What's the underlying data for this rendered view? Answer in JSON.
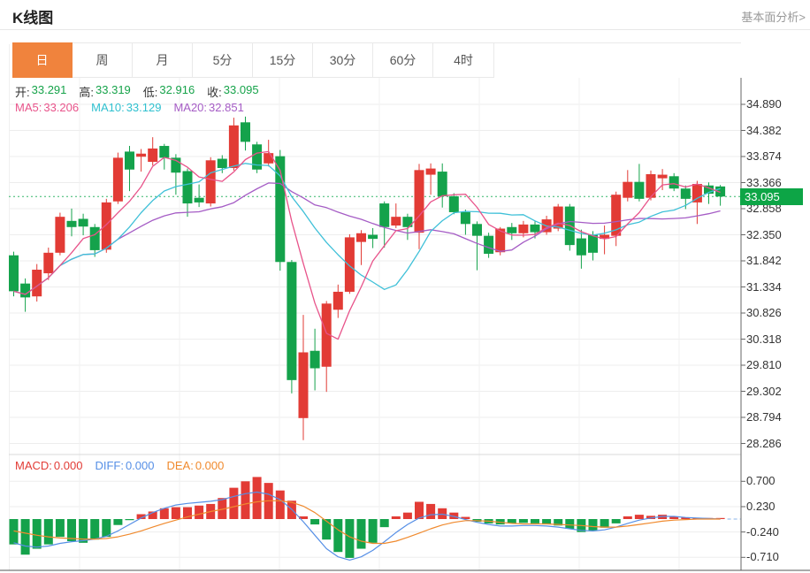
{
  "header": {
    "title": "K线图",
    "more_link": "基本面分析>"
  },
  "toolbar": {
    "tabs": [
      "日",
      "周",
      "月",
      "5分",
      "15分",
      "30分",
      "60分",
      "4时"
    ],
    "selected_index": 0
  },
  "ohlc_legend": {
    "items": [
      {
        "label": "开:",
        "value": "33.291"
      },
      {
        "label": "高:",
        "value": "33.319"
      },
      {
        "label": "低:",
        "value": "32.916"
      },
      {
        "label": "收:",
        "value": "33.095"
      }
    ],
    "value_color": "#16a34a"
  },
  "ma_legend": {
    "items": [
      {
        "label": "MA5:",
        "value": "33.206",
        "color": "#e8538a"
      },
      {
        "label": "MA10:",
        "value": "33.129",
        "color": "#2fc0cf"
      },
      {
        "label": "MA20:",
        "value": "32.851",
        "color": "#a55cc5"
      }
    ]
  },
  "macd_legend": {
    "items": [
      {
        "label": "MACD:",
        "value": "0.000",
        "color": "#e23b35"
      },
      {
        "label": "DIFF:",
        "value": "0.000",
        "color": "#568fe6"
      },
      {
        "label": "DEA:",
        "value": "0.000",
        "color": "#f08a2e"
      }
    ]
  },
  "price_badge": {
    "value": "33.095"
  },
  "colors": {
    "up": "#e23b35",
    "down": "#14a24b",
    "ma5": "#e8538a",
    "ma10": "#3fc0d8",
    "ma20": "#a55cc5",
    "diff": "#568fe6",
    "dea": "#f08a2e",
    "selected_tab": "#f0833d",
    "dotted_price_line": "#35b56a",
    "badge_bg": "#0da546",
    "grid": "#ededed",
    "axis": "#666666"
  },
  "chart_data": {
    "type": "candlestick+macd",
    "title": "K线图 (daily candlestick with MA5/MA10/MA20 and MACD)",
    "price_axis_ticks": [
      "34.890",
      "34.382",
      "33.874",
      "33.366",
      "32.858",
      "32.350",
      "31.842",
      "31.334",
      "30.826",
      "30.318",
      "29.810",
      "29.302",
      "28.794",
      "28.286"
    ],
    "price_range": {
      "min": 28.286,
      "max": 34.89
    },
    "current_price": 33.095,
    "today": {
      "open": 33.291,
      "high": 33.319,
      "low": 32.916,
      "close": 33.095
    },
    "ma_values": {
      "ma5": 33.206,
      "ma10": 33.129,
      "ma20": 32.851
    },
    "ma_periods": [
      5,
      10,
      20
    ],
    "candles_ohlc": [
      [
        31.95,
        32.02,
        31.15,
        31.25
      ],
      [
        31.4,
        31.5,
        30.85,
        31.13
      ],
      [
        31.15,
        31.78,
        31.05,
        31.67
      ],
      [
        31.6,
        32.1,
        31.47,
        32.0
      ],
      [
        32.0,
        32.78,
        31.95,
        32.7
      ],
      [
        32.62,
        32.86,
        32.32,
        32.5
      ],
      [
        32.66,
        32.76,
        32.34,
        32.51
      ],
      [
        32.5,
        32.56,
        31.92,
        32.05
      ],
      [
        32.06,
        33.05,
        32.0,
        32.98
      ],
      [
        33.0,
        33.95,
        32.95,
        33.85
      ],
      [
        33.97,
        34.08,
        33.2,
        33.62
      ],
      [
        33.87,
        34.02,
        33.58,
        33.93
      ],
      [
        33.77,
        34.25,
        33.7,
        34.03
      ],
      [
        34.08,
        34.12,
        33.62,
        33.85
      ],
      [
        33.85,
        33.92,
        33.13,
        33.56
      ],
      [
        33.59,
        33.64,
        32.7,
        32.96
      ],
      [
        33.07,
        33.33,
        32.89,
        32.98
      ],
      [
        32.96,
        33.86,
        32.9,
        33.8
      ],
      [
        33.83,
        33.9,
        33.55,
        33.65
      ],
      [
        33.65,
        34.63,
        33.6,
        34.48
      ],
      [
        34.54,
        34.65,
        33.99,
        34.16
      ],
      [
        34.11,
        34.16,
        33.55,
        33.62
      ],
      [
        33.74,
        34.2,
        33.68,
        33.94
      ],
      [
        33.88,
        34.0,
        31.65,
        31.82
      ],
      [
        31.82,
        31.86,
        29.26,
        29.52
      ],
      [
        28.78,
        30.79,
        28.35,
        30.06
      ],
      [
        30.09,
        30.52,
        29.32,
        29.75
      ],
      [
        29.78,
        31.06,
        29.29,
        31.01
      ],
      [
        30.89,
        31.38,
        30.73,
        31.24
      ],
      [
        31.24,
        32.36,
        31.2,
        32.3
      ],
      [
        32.21,
        32.44,
        31.76,
        32.38
      ],
      [
        32.35,
        32.48,
        32.09,
        32.27
      ],
      [
        32.96,
        33.0,
        32.1,
        32.5
      ],
      [
        32.53,
        32.96,
        32.48,
        32.7
      ],
      [
        32.7,
        32.76,
        32.25,
        32.5
      ],
      [
        32.39,
        33.73,
        32.07,
        33.61
      ],
      [
        33.52,
        33.74,
        33.13,
        33.64
      ],
      [
        33.58,
        33.74,
        32.88,
        33.1
      ],
      [
        33.1,
        33.16,
        32.75,
        32.79
      ],
      [
        32.79,
        32.84,
        32.35,
        32.56
      ],
      [
        32.56,
        32.61,
        31.66,
        32.33
      ],
      [
        32.33,
        32.39,
        31.9,
        31.98
      ],
      [
        32.01,
        32.5,
        31.95,
        32.47
      ],
      [
        32.5,
        32.58,
        32.25,
        32.38
      ],
      [
        32.38,
        32.62,
        32.3,
        32.55
      ],
      [
        32.55,
        32.61,
        32.28,
        32.4
      ],
      [
        32.4,
        32.72,
        32.35,
        32.65
      ],
      [
        32.47,
        32.95,
        32.42,
        32.9
      ],
      [
        32.9,
        32.95,
        32.04,
        32.15
      ],
      [
        32.28,
        32.45,
        31.69,
        31.95
      ],
      [
        32.35,
        32.42,
        31.85,
        32.0
      ],
      [
        32.27,
        32.53,
        31.97,
        32.35
      ],
      [
        32.33,
        33.19,
        32.13,
        33.13
      ],
      [
        33.07,
        33.61,
        33.0,
        33.38
      ],
      [
        33.38,
        33.73,
        33.0,
        33.05
      ],
      [
        33.07,
        33.6,
        33.02,
        33.53
      ],
      [
        33.45,
        33.63,
        33.22,
        33.52
      ],
      [
        33.49,
        33.55,
        33.2,
        33.25
      ],
      [
        33.25,
        33.31,
        32.85,
        33.05
      ],
      [
        32.98,
        33.4,
        32.56,
        33.34
      ],
      [
        33.31,
        33.37,
        32.95,
        33.15
      ],
      [
        33.291,
        33.319,
        32.916,
        33.095
      ]
    ],
    "macd_axis_ticks": [
      "0.700",
      "0.230",
      "-0.240",
      "-0.710"
    ],
    "macd_range": {
      "min": -0.71,
      "max": 0.7
    },
    "macd_values": {
      "macd": 0.0,
      "diff": 0.0,
      "dea": 0.0
    },
    "macd_bars": [
      -0.47,
      -0.66,
      -0.55,
      -0.47,
      -0.33,
      -0.41,
      -0.44,
      -0.38,
      -0.33,
      -0.11,
      -0.02,
      0.09,
      0.14,
      0.2,
      0.22,
      0.22,
      0.25,
      0.28,
      0.39,
      0.58,
      0.7,
      0.78,
      0.67,
      0.53,
      0.34,
      0.05,
      -0.1,
      -0.38,
      -0.61,
      -0.72,
      -0.55,
      -0.44,
      -0.15,
      0.05,
      0.12,
      0.32,
      0.28,
      0.2,
      0.12,
      0.04,
      -0.05,
      -0.08,
      -0.1,
      -0.08,
      -0.07,
      -0.08,
      -0.1,
      -0.12,
      -0.18,
      -0.24,
      -0.22,
      -0.16,
      -0.08,
      0.05,
      0.08,
      0.06,
      0.08,
      0.05,
      0.03,
      0.02,
      0.01,
      0.0
    ],
    "diff_line": [
      -0.44,
      -0.5,
      -0.52,
      -0.5,
      -0.45,
      -0.42,
      -0.4,
      -0.37,
      -0.32,
      -0.22,
      -0.1,
      0.02,
      0.12,
      0.2,
      0.26,
      0.29,
      0.31,
      0.33,
      0.36,
      0.42,
      0.47,
      0.5,
      0.46,
      0.36,
      0.18,
      -0.05,
      -0.3,
      -0.55,
      -0.7,
      -0.76,
      -0.7,
      -0.58,
      -0.42,
      -0.25,
      -0.1,
      0.02,
      0.08,
      0.09,
      0.05,
      -0.01,
      -0.06,
      -0.1,
      -0.13,
      -0.13,
      -0.12,
      -0.12,
      -0.13,
      -0.15,
      -0.18,
      -0.21,
      -0.22,
      -0.2,
      -0.15,
      -0.08,
      -0.02,
      0.02,
      0.05,
      0.05,
      0.03,
      0.02,
      0.01,
      0.0
    ],
    "dea_line": [
      -0.22,
      -0.26,
      -0.3,
      -0.33,
      -0.35,
      -0.36,
      -0.37,
      -0.37,
      -0.36,
      -0.33,
      -0.28,
      -0.22,
      -0.15,
      -0.08,
      -0.02,
      0.04,
      0.09,
      0.14,
      0.18,
      0.23,
      0.28,
      0.32,
      0.34,
      0.34,
      0.31,
      0.24,
      0.12,
      -0.04,
      -0.2,
      -0.33,
      -0.41,
      -0.45,
      -0.45,
      -0.41,
      -0.34,
      -0.26,
      -0.18,
      -0.11,
      -0.06,
      -0.03,
      -0.03,
      -0.04,
      -0.06,
      -0.08,
      -0.09,
      -0.09,
      -0.09,
      -0.1,
      -0.11,
      -0.12,
      -0.14,
      -0.15,
      -0.15,
      -0.13,
      -0.1,
      -0.07,
      -0.04,
      -0.02,
      -0.01,
      0.0,
      0.0,
      0.0
    ]
  }
}
